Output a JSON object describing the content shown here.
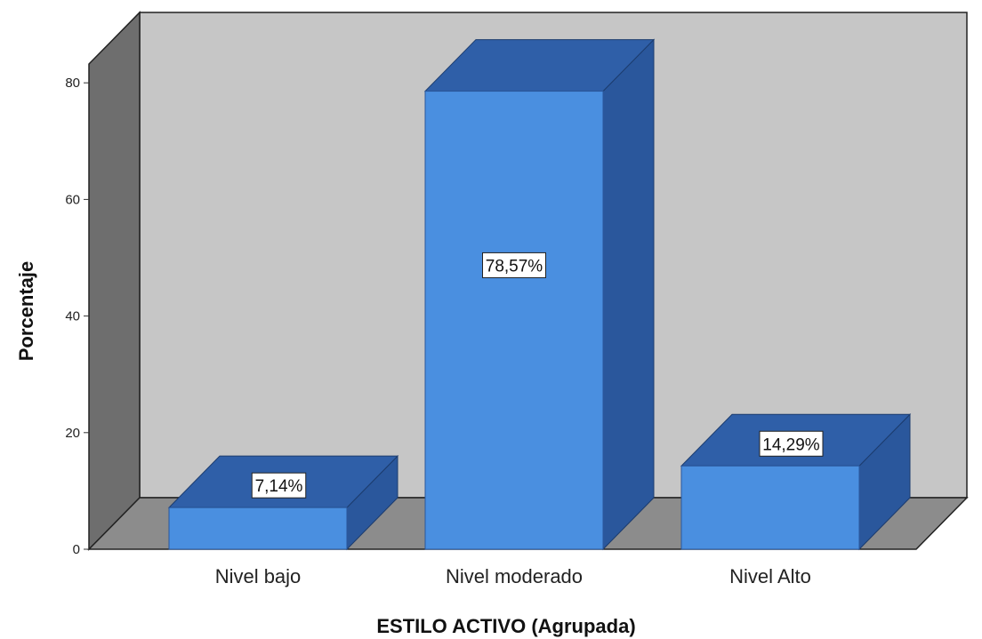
{
  "chart_data": {
    "type": "bar",
    "categories": [
      "Nivel bajo",
      "Nivel moderado",
      "Nivel Alto"
    ],
    "values": [
      7.14,
      78.57,
      14.29
    ],
    "data_labels": [
      "7,14%",
      "78,57%",
      "14,29%"
    ],
    "xlabel": "ESTILO ACTIVO (Agrupada)",
    "ylabel": "Porcentaje",
    "yticks": [
      0,
      20,
      40,
      60,
      80
    ],
    "ylim": [
      0,
      85
    ],
    "grid": false,
    "style": "3d",
    "colors": {
      "bar_front": "#4a8fe0",
      "bar_top": "#2f5fa8",
      "bar_side": "#2a579c",
      "back_wall": "#c6c6c6",
      "side_wall": "#6e6e6e",
      "floor": "#8c8c8c"
    }
  }
}
